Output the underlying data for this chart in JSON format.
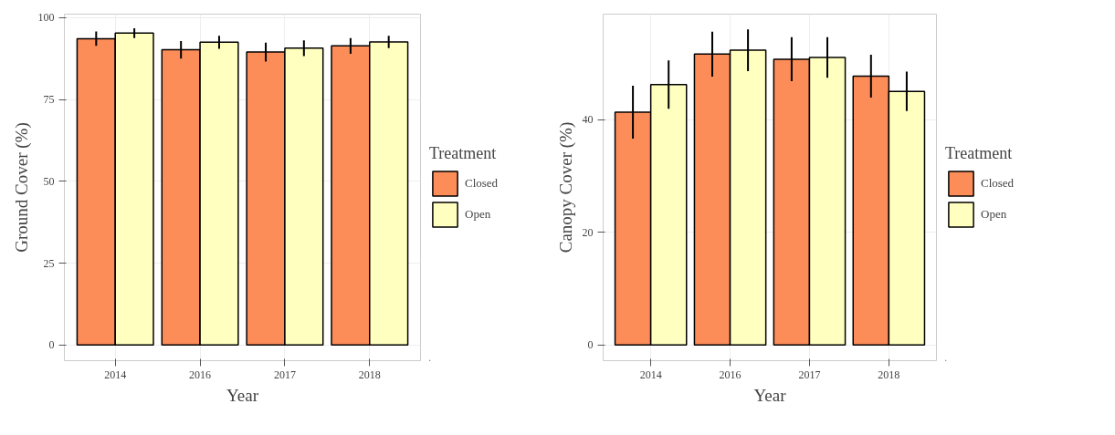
{
  "chart_data": [
    {
      "type": "bar",
      "xlabel": "Year",
      "ylabel": "Ground Cover (%)",
      "legend_title": "Treatment",
      "categories": [
        "2014",
        "2016",
        "2017",
        "2018"
      ],
      "series": [
        {
          "name": "Closed",
          "color": "#fc8d59",
          "values": [
            93.6,
            90.2,
            89.5,
            91.4
          ],
          "errors": [
            2.2,
            2.7,
            2.9,
            2.4
          ]
        },
        {
          "name": "Open",
          "color": "#ffffbf",
          "values": [
            95.3,
            92.5,
            90.7,
            92.6
          ],
          "errors": [
            1.5,
            2.0,
            2.4,
            1.9
          ]
        }
      ],
      "ylim": [
        -4.8,
        101.1
      ],
      "yticks": [
        0,
        25,
        50,
        75,
        100
      ],
      "grid": true,
      "legend": "right"
    },
    {
      "type": "bar",
      "xlabel": "Year",
      "ylabel": "Canopy Cover (%)",
      "legend_title": "Treatment",
      "categories": [
        "2014",
        "2016",
        "2017",
        "2018"
      ],
      "series": [
        {
          "name": "Closed",
          "color": "#fc8d59",
          "values": [
            41.3,
            51.6,
            50.7,
            47.7
          ],
          "errors": [
            4.7,
            4.0,
            3.9,
            3.8
          ]
        },
        {
          "name": "Open",
          "color": "#ffffbf",
          "values": [
            46.2,
            52.3,
            51.0,
            45.0
          ],
          "errors": [
            4.3,
            3.7,
            3.6,
            3.5
          ]
        }
      ],
      "ylim": [
        -2.8,
        58.7
      ],
      "yticks": [
        0,
        20,
        40
      ],
      "grid": true,
      "legend": "right"
    }
  ]
}
